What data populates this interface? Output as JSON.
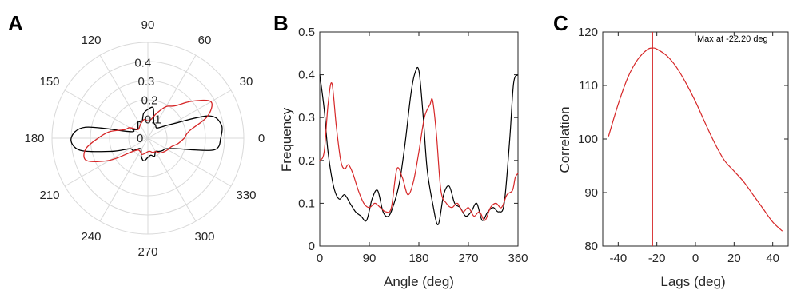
{
  "colors": {
    "red": "#d62728",
    "black": "#000000",
    "grid": "#d9d9d9",
    "axis": "#262626"
  },
  "chart_data": [
    {
      "panel": "A",
      "type": "polar-line",
      "angle_ticks": [
        "90",
        "60",
        "30",
        "0",
        "330",
        "300",
        "270",
        "240",
        "210",
        "180",
        "150",
        "120"
      ],
      "angle_tick_values": [
        90,
        60,
        30,
        0,
        330,
        300,
        270,
        240,
        210,
        180,
        150,
        120
      ],
      "radial_ticks": [
        "0",
        "0.1",
        "0.2",
        "0.3",
        "0.4"
      ],
      "radial_tick_values": [
        0,
        0.1,
        0.2,
        0.3,
        0.4
      ],
      "rlim": [
        0,
        0.5
      ],
      "grid": true,
      "series": [
        {
          "color": "black",
          "points": [
            [
              0,
              0.38
            ],
            [
              10,
              0.39
            ],
            [
              20,
              0.34
            ],
            [
              30,
              0.15
            ],
            [
              40,
              0.09
            ],
            [
              50,
              0.07
            ],
            [
              60,
              0.08
            ],
            [
              70,
              0.09
            ],
            [
              80,
              0.16
            ],
            [
              90,
              0.15
            ],
            [
              100,
              0.13
            ],
            [
              110,
              0.09
            ],
            [
              120,
              0.1
            ],
            [
              130,
              0.08
            ],
            [
              140,
              0.07
            ],
            [
              150,
              0.09
            ],
            [
              160,
              0.1
            ],
            [
              170,
              0.33
            ],
            [
              180,
              0.4
            ],
            [
              190,
              0.36
            ],
            [
              200,
              0.2
            ],
            [
              210,
              0.11
            ],
            [
              220,
              0.1
            ],
            [
              230,
              0.07
            ],
            [
              240,
              0.07
            ],
            [
              250,
              0.1
            ],
            [
              260,
              0.12
            ],
            [
              270,
              0.1
            ],
            [
              280,
              0.09
            ],
            [
              290,
              0.1
            ],
            [
              300,
              0.08
            ],
            [
              310,
              0.09
            ],
            [
              320,
              0.1
            ],
            [
              330,
              0.11
            ],
            [
              340,
              0.16
            ],
            [
              350,
              0.35
            ],
            [
              360,
              0.38
            ]
          ]
        },
        {
          "color": "red",
          "points": [
            [
              0,
              0.19
            ],
            [
              10,
              0.22
            ],
            [
              20,
              0.33
            ],
            [
              30,
              0.38
            ],
            [
              40,
              0.3
            ],
            [
              50,
              0.22
            ],
            [
              60,
              0.19
            ],
            [
              70,
              0.14
            ],
            [
              80,
              0.1
            ],
            [
              90,
              0.09
            ],
            [
              100,
              0.1
            ],
            [
              110,
              0.09
            ],
            [
              120,
              0.08
            ],
            [
              130,
              0.07
            ],
            [
              140,
              0.07
            ],
            [
              150,
              0.11
            ],
            [
              160,
              0.13
            ],
            [
              170,
              0.2
            ],
            [
              180,
              0.26
            ],
            [
              190,
              0.33
            ],
            [
              200,
              0.34
            ],
            [
              210,
              0.23
            ],
            [
              220,
              0.11
            ],
            [
              230,
              0.08
            ],
            [
              240,
              0.08
            ],
            [
              250,
              0.09
            ],
            [
              260,
              0.08
            ],
            [
              270,
              0.07
            ],
            [
              280,
              0.07
            ],
            [
              290,
              0.08
            ],
            [
              300,
              0.08
            ],
            [
              310,
              0.1
            ],
            [
              320,
              0.11
            ],
            [
              330,
              0.12
            ],
            [
              340,
              0.13
            ],
            [
              350,
              0.16
            ],
            [
              360,
              0.19
            ]
          ]
        }
      ]
    },
    {
      "panel": "B",
      "type": "line",
      "xlabel": "Angle (deg)",
      "ylabel": "Frequency",
      "xlim": [
        0,
        360
      ],
      "ylim": [
        0,
        0.5
      ],
      "xticks": [
        "0",
        "90",
        "180",
        "270",
        "360"
      ],
      "xtick_values": [
        0,
        90,
        180,
        270,
        360
      ],
      "yticks": [
        "0",
        "0.1",
        "0.2",
        "0.3",
        "0.4",
        "0.5"
      ],
      "ytick_values": [
        0,
        0.1,
        0.2,
        0.3,
        0.4,
        0.5
      ],
      "series": [
        {
          "color": "black",
          "x": [
            0,
            8,
            15,
            25,
            35,
            45,
            55,
            65,
            75,
            85,
            95,
            105,
            115,
            125,
            135,
            145,
            155,
            165,
            172,
            180,
            188,
            195,
            205,
            215,
            225,
            235,
            245,
            255,
            265,
            275,
            285,
            295,
            305,
            315,
            325,
            335,
            345,
            352,
            360
          ],
          "y": [
            0.4,
            0.32,
            0.22,
            0.14,
            0.11,
            0.12,
            0.1,
            0.08,
            0.07,
            0.06,
            0.11,
            0.13,
            0.08,
            0.07,
            0.1,
            0.15,
            0.24,
            0.35,
            0.4,
            0.41,
            0.3,
            0.18,
            0.1,
            0.05,
            0.12,
            0.14,
            0.1,
            0.09,
            0.07,
            0.08,
            0.1,
            0.06,
            0.08,
            0.09,
            0.08,
            0.1,
            0.25,
            0.38,
            0.4
          ]
        },
        {
          "color": "red",
          "x": [
            0,
            8,
            15,
            22,
            30,
            38,
            45,
            52,
            60,
            70,
            80,
            90,
            100,
            110,
            120,
            130,
            140,
            150,
            160,
            170,
            180,
            190,
            200,
            205,
            212,
            220,
            230,
            240,
            250,
            260,
            270,
            280,
            290,
            300,
            310,
            320,
            330,
            340,
            350,
            355,
            360
          ],
          "y": [
            0.2,
            0.22,
            0.33,
            0.38,
            0.28,
            0.2,
            0.18,
            0.19,
            0.17,
            0.13,
            0.1,
            0.09,
            0.1,
            0.09,
            0.08,
            0.09,
            0.18,
            0.16,
            0.12,
            0.15,
            0.22,
            0.3,
            0.33,
            0.34,
            0.26,
            0.13,
            0.1,
            0.09,
            0.1,
            0.08,
            0.09,
            0.07,
            0.08,
            0.06,
            0.09,
            0.1,
            0.09,
            0.12,
            0.13,
            0.16,
            0.17
          ]
        }
      ]
    },
    {
      "panel": "C",
      "type": "line",
      "xlabel": "Lags (deg)",
      "ylabel": "Correlation",
      "xlim": [
        -48,
        48
      ],
      "ylim": [
        80,
        120
      ],
      "xticks": [
        "-40",
        "-20",
        "0",
        "20",
        "40"
      ],
      "xtick_values": [
        -40,
        -20,
        0,
        20,
        40
      ],
      "yticks": [
        "80",
        "90",
        "100",
        "110",
        "120"
      ],
      "ytick_values": [
        80,
        90,
        100,
        110,
        120
      ],
      "annotation": "Max at -22.20 deg",
      "vline_x": -22.2,
      "series": [
        {
          "color": "red",
          "x": [
            -45,
            -40,
            -35,
            -30,
            -25,
            -22.2,
            -20,
            -15,
            -10,
            -5,
            0,
            5,
            10,
            15,
            20,
            25,
            30,
            35,
            40,
            45
          ],
          "y": [
            100.5,
            106.5,
            111.5,
            114.8,
            116.7,
            117.0,
            116.8,
            115.6,
            113.5,
            110.5,
            107.0,
            103.0,
            99.2,
            96.0,
            94.0,
            92.0,
            89.5,
            87.0,
            84.5,
            82.8
          ]
        }
      ]
    }
  ],
  "panel_letters": {
    "a": "A",
    "b": "B",
    "c": "C"
  },
  "panelB": {
    "xlabel": "Angle (deg)",
    "ylabel": "Frequency"
  },
  "panelC": {
    "xlabel": "Lags (deg)",
    "ylabel": "Correlation",
    "annotation": "Max at -22.20 deg"
  }
}
